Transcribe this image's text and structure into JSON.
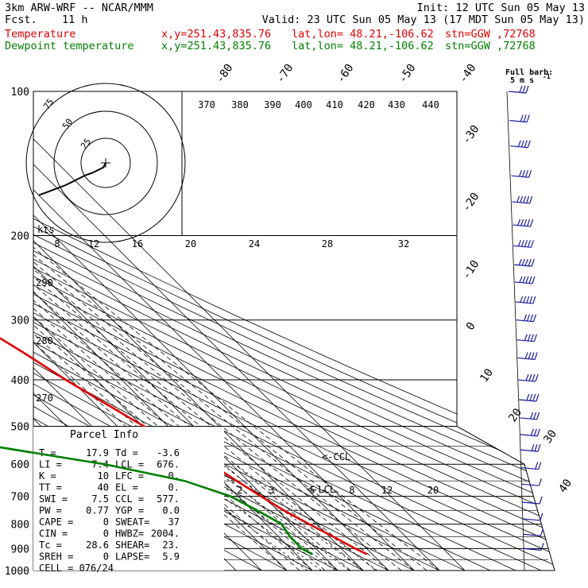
{
  "header": {
    "model": "3km ARW-WRF -- NCAR/MMM",
    "init": "Init: 12 UTC Sun 05 May 13",
    "fcst_label": "Fcst.",
    "fcst_value": "11 h",
    "valid": "Valid: 23 UTC Sun 05 May 13 (17 MDT Sun 05 May 13)",
    "temp_line": {
      "name": "Temperature",
      "xy": "x,y=251.43,835.76",
      "latlon": "lat,lon= 48.21,-106.62",
      "stn": "stn=GGW ,72768"
    },
    "dew_line": {
      "name": "Dewpoint temperature",
      "xy": "x,y=251.43,835.76",
      "latlon": "lat,lon= 48.21,-106.62",
      "stn": "stn=GGW ,72768"
    }
  },
  "colors": {
    "temperature": "#e00000",
    "dewpoint": "#008000",
    "lines": "#000000",
    "dashed": "#000000"
  },
  "chart_data": {
    "type": "line",
    "pressure_levels": [
      100,
      200,
      300,
      400,
      500,
      600,
      700,
      800,
      900,
      1000
    ],
    "isotherm_labels": [
      "-80",
      "-70",
      "-60",
      "-50",
      "-40",
      "-30",
      "-20",
      "-10",
      "0",
      "10",
      "20",
      "30",
      "40"
    ],
    "theta_labels": [
      "370",
      "380",
      "390",
      "400",
      "410",
      "420",
      "430",
      "440"
    ],
    "theta_side_labels": [
      "290",
      "280",
      "270"
    ],
    "thickness_labels": [
      "8",
      "12",
      "16",
      "20",
      "24",
      "28",
      "32"
    ],
    "mixing_ratio_labels": [
      "2",
      "3",
      "5",
      "8",
      "12",
      "20"
    ],
    "series": [
      {
        "name": "Temperature",
        "points": [
          [
            100,
            -48
          ],
          [
            120,
            -49
          ],
          [
            150,
            -52
          ],
          [
            180,
            -54
          ],
          [
            200,
            -56
          ],
          [
            230,
            -55
          ],
          [
            260,
            -51
          ],
          [
            300,
            -46
          ],
          [
            350,
            -38
          ],
          [
            400,
            -32
          ],
          [
            450,
            -25.5
          ],
          [
            500,
            -19.5
          ],
          [
            550,
            -13
          ],
          [
            600,
            -8
          ],
          [
            650,
            -4.5
          ],
          [
            700,
            -1
          ],
          [
            750,
            2.5
          ],
          [
            800,
            7
          ],
          [
            850,
            11.5
          ],
          [
            900,
            15.5
          ],
          [
            925,
            17.9
          ]
        ]
      },
      {
        "name": "Dewpoint temperature",
        "points": [
          [
            100,
            -77
          ],
          [
            130,
            -77
          ],
          [
            160,
            -78
          ],
          [
            180,
            -79
          ],
          [
            200,
            -79
          ],
          [
            230,
            -80
          ],
          [
            260,
            -80
          ],
          [
            300,
            -80
          ],
          [
            350,
            -81
          ],
          [
            400,
            -82
          ],
          [
            450,
            -84
          ],
          [
            500,
            -85.5
          ],
          [
            550,
            -87
          ],
          [
            600,
            -50
          ],
          [
            650,
            -25
          ],
          [
            700,
            -13
          ],
          [
            750,
            -8
          ],
          [
            800,
            -3.8
          ],
          [
            850,
            -5.5
          ],
          [
            900,
            -5.5
          ],
          [
            925,
            -3.6
          ]
        ]
      }
    ],
    "hodograph": {
      "rings": [
        "25",
        "50",
        "75"
      ],
      "units_label": "kts",
      "trace": [
        [
          0,
          0
        ],
        [
          -2,
          4
        ],
        [
          -6,
          6
        ],
        [
          -12,
          9
        ],
        [
          -18,
          11
        ],
        [
          -24,
          14
        ],
        [
          -30,
          17
        ],
        [
          -36,
          20
        ],
        [
          -44,
          23
        ],
        [
          -52,
          26
        ],
        [
          -60,
          29
        ]
      ]
    },
    "annotations": {
      "ccl_label": "<-CCL",
      "lcl_label": "<-LCL"
    },
    "barb_legend": {
      "title": "Full barb:",
      "unit": "5 m s",
      "superscript": "-1"
    },
    "wind_barbs": [
      {
        "p": 100,
        "speed": 15,
        "dir": 250
      },
      {
        "p": 115,
        "speed": 15,
        "dir": 250
      },
      {
        "p": 130,
        "speed": 20,
        "dir": 255
      },
      {
        "p": 150,
        "speed": 20,
        "dir": 255
      },
      {
        "p": 170,
        "speed": 25,
        "dir": 255
      },
      {
        "p": 190,
        "speed": 25,
        "dir": 258
      },
      {
        "p": 210,
        "speed": 25,
        "dir": 258
      },
      {
        "p": 230,
        "speed": 25,
        "dir": 258
      },
      {
        "p": 250,
        "speed": 25,
        "dir": 260
      },
      {
        "p": 275,
        "speed": 25,
        "dir": 260
      },
      {
        "p": 300,
        "speed": 20,
        "dir": 262
      },
      {
        "p": 330,
        "speed": 20,
        "dir": 262
      },
      {
        "p": 360,
        "speed": 20,
        "dir": 262
      },
      {
        "p": 400,
        "speed": 20,
        "dir": 265
      },
      {
        "p": 440,
        "speed": 20,
        "dir": 265
      },
      {
        "p": 480,
        "speed": 15,
        "dir": 265
      },
      {
        "p": 520,
        "speed": 15,
        "dir": 265
      },
      {
        "p": 560,
        "speed": 15,
        "dir": 265
      },
      {
        "p": 610,
        "speed": 10,
        "dir": 270
      },
      {
        "p": 660,
        "speed": 5,
        "dir": 270
      },
      {
        "p": 720,
        "speed": 5,
        "dir": 280
      },
      {
        "p": 780,
        "speed": 5,
        "dir": 290
      },
      {
        "p": 840,
        "speed": 5,
        "dir": 300
      },
      {
        "p": 900,
        "speed": 5,
        "dir": 310
      }
    ],
    "title": "",
    "xlabel": "",
    "ylabel": ""
  },
  "parcel_info": {
    "title": "Parcel Info",
    "rows": [
      [
        "T  =",
        "17.9",
        "Td =",
        "-3.6"
      ],
      [
        "LI =",
        "7.4",
        "LCL =",
        "676."
      ],
      [
        "K  =",
        "10",
        "LFC =",
        "0."
      ],
      [
        "TT =",
        "40",
        "EL  =",
        "0."
      ],
      [
        "SWI =",
        "7.5",
        "CCL =",
        "577."
      ],
      [
        "PW =",
        "0.77",
        "YGP =",
        "0.0"
      ],
      [
        "CAPE =",
        "0",
        "SWEAT=",
        "37"
      ],
      [
        "CIN =",
        "0",
        "HWBZ=",
        "2004."
      ],
      [
        "Tc =",
        "28.6",
        "SHEAR=",
        "23."
      ],
      [
        "SREH =",
        "0",
        "LAPSE=",
        "5.9"
      ]
    ],
    "cell": "CELL = 076/24"
  }
}
